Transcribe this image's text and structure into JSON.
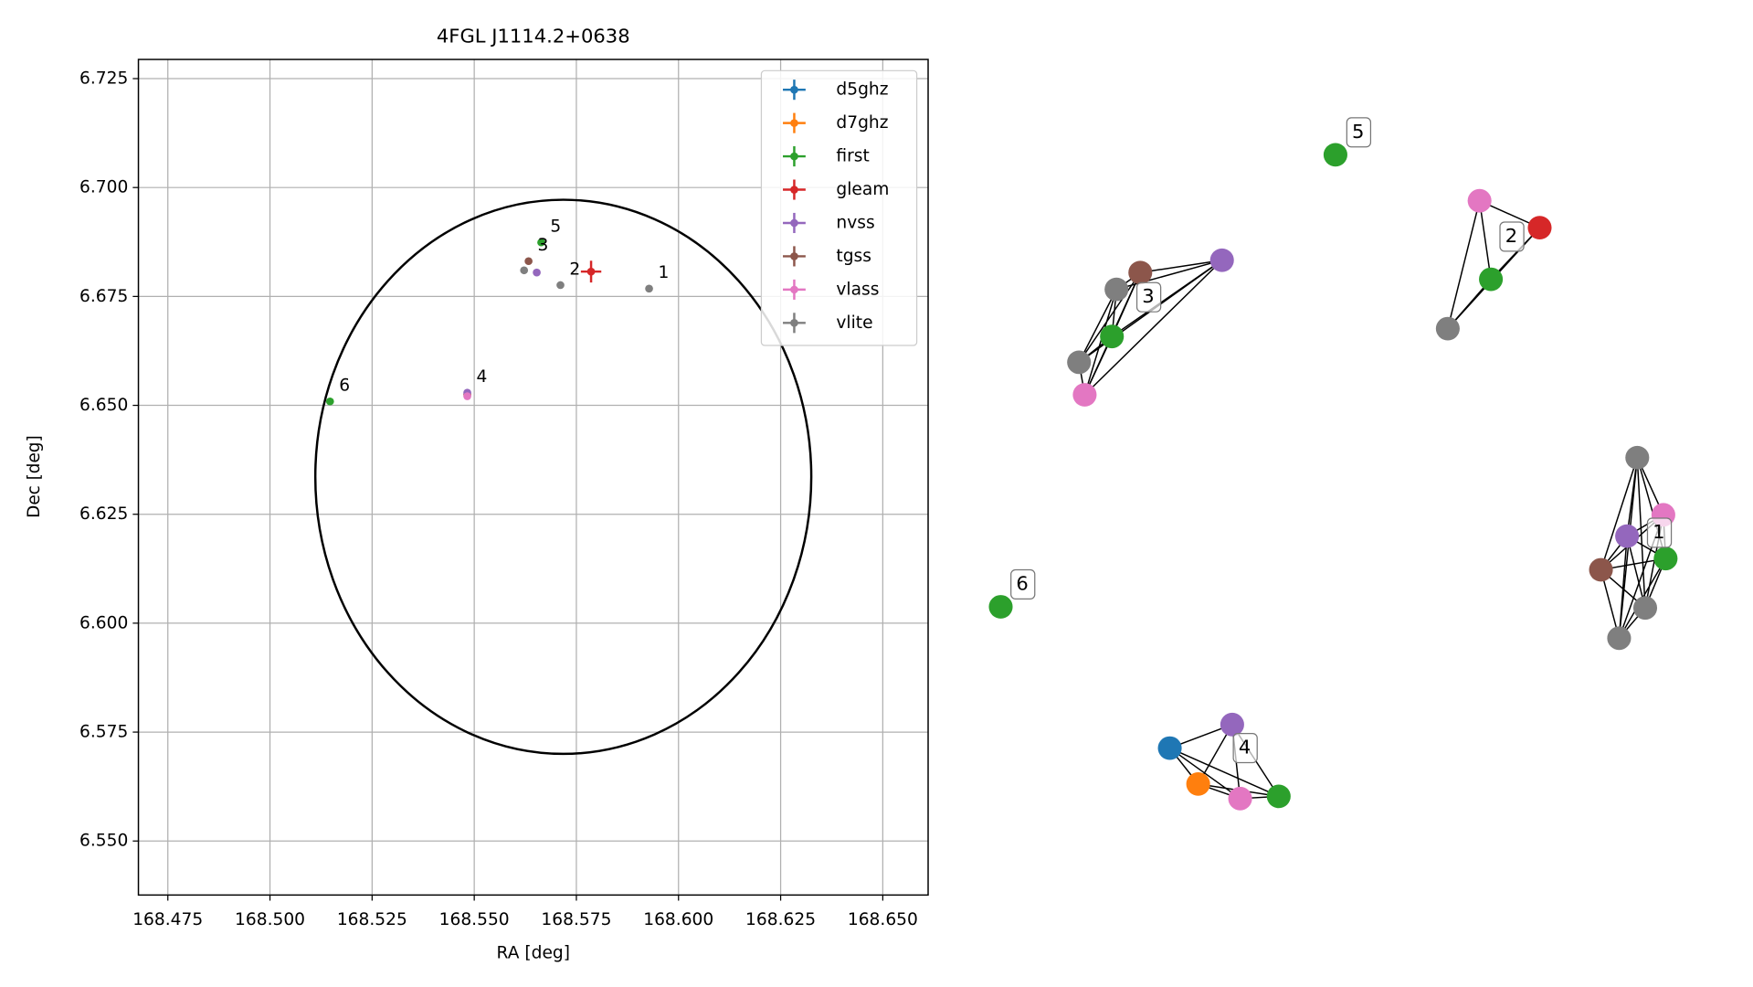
{
  "chart_data": {
    "type": "scatter",
    "title": "4FGL J1114.2+0638",
    "x_label": "RA [deg]",
    "y_label": "Dec [deg]",
    "xlim": [
      168.4678,
      168.6611
    ],
    "ylim": [
      6.5376,
      6.7294
    ],
    "xticks": [
      168.475,
      {
        "value": 168.5,
        "label": "168.500"
      },
      168.525,
      {
        "value": 168.55,
        "label": "168.550"
      },
      168.575,
      {
        "value": 168.6,
        "label": "168.600"
      },
      168.625,
      {
        "value": 168.65,
        "label": "168.650"
      }
    ],
    "yticks": [
      {
        "value": 6.55,
        "label": "6.550"
      },
      6.575,
      {
        "value": 6.6,
        "label": "6.600"
      },
      6.625,
      {
        "value": 6.65,
        "label": "6.650"
      },
      6.675,
      {
        "value": 6.7,
        "label": "6.700"
      },
      6.725
    ],
    "grid": true,
    "legend": "upper right",
    "series": [
      {
        "name": "d5ghz",
        "color": "#1f77b4",
        "x": [
          168.5483
        ],
        "values": [
          6.6525
        ]
      },
      {
        "name": "d7ghz",
        "color": "#ff7f0e",
        "x": [
          168.5483
        ],
        "values": [
          6.6525
        ]
      },
      {
        "name": "first",
        "color": "#2ca02c",
        "x": [
          168.5664,
          168.5147
        ],
        "values": [
          6.6874,
          6.6509
        ]
      },
      {
        "name": "gleam",
        "color": "#d62728",
        "x": [
          168.5786
        ],
        "values": [
          6.6807
        ],
        "xerr": [
          0.0025
        ],
        "yerr": [
          0.0025
        ]
      },
      {
        "name": "nvss",
        "color": "#9467bd",
        "x": [
          168.5653,
          168.5483
        ],
        "values": [
          6.6805,
          6.6529
        ]
      },
      {
        "name": "tgss",
        "color": "#8c564b",
        "x": [
          168.5633
        ],
        "values": [
          6.6831
        ]
      },
      {
        "name": "vlass",
        "color": "#e377c2",
        "x": [
          168.5483
        ],
        "values": [
          6.6521
        ]
      },
      {
        "name": "vlite",
        "color": "#7f7f7f",
        "x": [
          168.5622,
          168.5711,
          168.5928
        ],
        "values": [
          6.681,
          6.6776,
          6.6768
        ]
      }
    ],
    "annotations": [
      {
        "text": "1",
        "x": 168.5928,
        "y": 6.6768
      },
      {
        "text": "2",
        "x": 168.5711,
        "y": 6.6776
      },
      {
        "text": "3",
        "x": 168.5633,
        "y": 6.6831
      },
      {
        "text": "4",
        "x": 168.5483,
        "y": 6.6529
      },
      {
        "text": "5",
        "x": 168.5664,
        "y": 6.6874
      },
      {
        "text": "6",
        "x": 168.5147,
        "y": 6.6509
      }
    ],
    "ellipse": {
      "center": [
        168.5718,
        6.6336
      ],
      "radius": [
        0.0607,
        0.0636
      ],
      "color": "#000000"
    }
  },
  "graph": {
    "groups": [
      {
        "label": "1",
        "colors": [
          "#7f7f7f",
          "#e377c2",
          "#9467bd",
          "#2ca02c",
          "#8c564b",
          "#7f7f7f",
          "#7f7f7f"
        ]
      },
      {
        "label": "2",
        "colors": [
          "#e377c2",
          "#d62728",
          "#2ca02c",
          "#7f7f7f"
        ]
      },
      {
        "label": "3",
        "colors": [
          "#8c564b",
          "#9467bd",
          "#7f7f7f",
          "#2ca02c",
          "#7f7f7f",
          "#e377c2"
        ]
      },
      {
        "label": "4",
        "colors": [
          "#9467bd",
          "#1f77b4",
          "#ff7f0e",
          "#e377c2",
          "#2ca02c"
        ]
      },
      {
        "label": "5",
        "colors": [
          "#2ca02c"
        ]
      },
      {
        "label": "6",
        "colors": [
          "#2ca02c"
        ]
      }
    ]
  }
}
